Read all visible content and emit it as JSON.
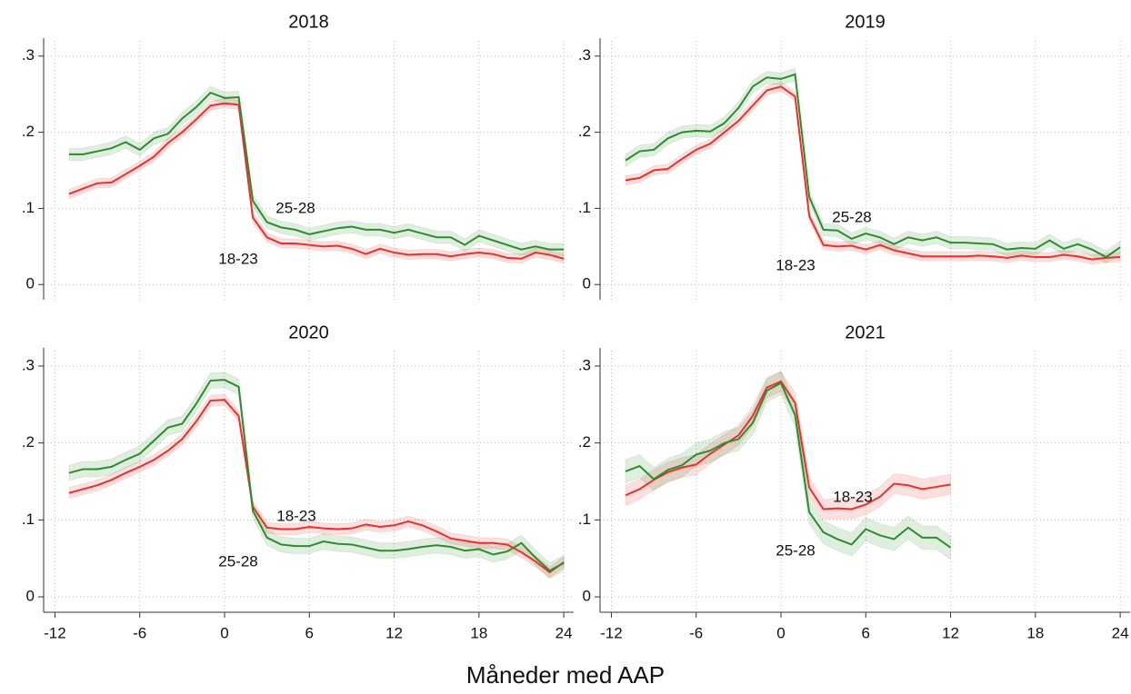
{
  "chart_data": [
    {
      "type": "line",
      "title": "2018",
      "x": [
        -11,
        -10,
        -9,
        -8,
        -7,
        -6,
        -5,
        -4,
        -3,
        -2,
        -1,
        0,
        1,
        2,
        3,
        4,
        5,
        6,
        7,
        8,
        9,
        10,
        11,
        12,
        13,
        14,
        15,
        16,
        17,
        18,
        19,
        20,
        21,
        22,
        23,
        24
      ],
      "series": [
        {
          "name": "18-23",
          "color": "#e8312b",
          "ci": 0.006,
          "values": [
            0.119,
            0.126,
            0.133,
            0.134,
            0.145,
            0.156,
            0.168,
            0.186,
            0.2,
            0.217,
            0.235,
            0.238,
            0.236,
            0.088,
            0.062,
            0.054,
            0.054,
            0.052,
            0.05,
            0.051,
            0.047,
            0.04,
            0.047,
            0.042,
            0.039,
            0.04,
            0.04,
            0.037,
            0.04,
            0.042,
            0.04,
            0.035,
            0.034,
            0.042,
            0.039,
            0.034
          ]
        },
        {
          "name": "25-28",
          "color": "#2e8b2e",
          "ci": 0.008,
          "values": [
            0.171,
            0.171,
            0.175,
            0.179,
            0.187,
            0.177,
            0.192,
            0.198,
            0.218,
            0.233,
            0.252,
            0.245,
            0.246,
            0.11,
            0.082,
            0.075,
            0.072,
            0.066,
            0.07,
            0.074,
            0.076,
            0.072,
            0.072,
            0.068,
            0.072,
            0.067,
            0.062,
            0.062,
            0.052,
            0.064,
            0.058,
            0.052,
            0.046,
            0.05,
            0.046,
            0.046
          ]
        }
      ],
      "xlim": [
        -12.8,
        24.7
      ],
      "ylim": [
        -0.02,
        0.32
      ],
      "xticks": [
        -12,
        -6,
        0,
        6,
        12,
        18,
        24
      ],
      "yticks": [
        0,
        {
          "value": 0.1,
          "label": ".1"
        },
        {
          "value": 0.2,
          "label": ".2"
        },
        {
          "value": 0.3,
          "label": ".3"
        }
      ],
      "grid": true
    },
    {
      "type": "line",
      "title": "2019",
      "x": [
        -11,
        -10,
        -9,
        -8,
        -7,
        -6,
        -5,
        -4,
        -3,
        -2,
        -1,
        0,
        1,
        2,
        3,
        4,
        5,
        6,
        7,
        8,
        9,
        10,
        11,
        12,
        13,
        14,
        15,
        16,
        17,
        18,
        19,
        20,
        21,
        22,
        23,
        24
      ],
      "series": [
        {
          "name": "18-23",
          "color": "#e8312b",
          "ci": 0.006,
          "values": [
            0.137,
            0.14,
            0.15,
            0.152,
            0.165,
            0.177,
            0.185,
            0.2,
            0.215,
            0.235,
            0.255,
            0.26,
            0.247,
            0.09,
            0.052,
            0.05,
            0.051,
            0.046,
            0.052,
            0.045,
            0.041,
            0.037,
            0.037,
            0.037,
            0.037,
            0.038,
            0.037,
            0.035,
            0.038,
            0.036,
            0.036,
            0.039,
            0.037,
            0.033,
            0.035,
            0.036
          ]
        },
        {
          "name": "25-28",
          "color": "#2e8b2e",
          "ci": 0.008,
          "values": [
            0.163,
            0.175,
            0.177,
            0.192,
            0.2,
            0.202,
            0.201,
            0.212,
            0.232,
            0.26,
            0.272,
            0.27,
            0.276,
            0.115,
            0.072,
            0.071,
            0.06,
            0.067,
            0.062,
            0.053,
            0.062,
            0.058,
            0.062,
            0.055,
            0.055,
            0.054,
            0.053,
            0.046,
            0.048,
            0.047,
            0.058,
            0.047,
            0.053,
            0.046,
            0.036,
            0.049
          ]
        }
      ],
      "xlim": [
        -12.8,
        24.7
      ],
      "ylim": [
        -0.02,
        0.32
      ],
      "xticks": [
        -12,
        -6,
        0,
        6,
        12,
        18,
        24
      ],
      "yticks": [
        0,
        {
          "value": 0.1,
          "label": ".1"
        },
        {
          "value": 0.2,
          "label": ".2"
        },
        {
          "value": 0.3,
          "label": ".3"
        }
      ],
      "grid": true
    },
    {
      "type": "line",
      "title": "2020",
      "x": [
        -11,
        -10,
        -9,
        -8,
        -7,
        -6,
        -5,
        -4,
        -3,
        -2,
        -1,
        0,
        1,
        2,
        3,
        4,
        5,
        6,
        7,
        8,
        9,
        10,
        11,
        12,
        13,
        14,
        15,
        16,
        17,
        18,
        19,
        20,
        21,
        22,
        23,
        24
      ],
      "series": [
        {
          "name": "18-23",
          "color": "#e8312b",
          "ci": 0.007,
          "values": [
            0.135,
            0.14,
            0.145,
            0.152,
            0.161,
            0.169,
            0.178,
            0.19,
            0.205,
            0.228,
            0.255,
            0.256,
            0.235,
            0.117,
            0.09,
            0.088,
            0.088,
            0.091,
            0.089,
            0.088,
            0.089,
            0.094,
            0.091,
            0.093,
            0.098,
            0.093,
            0.085,
            0.076,
            0.073,
            0.07,
            0.07,
            0.068,
            0.058,
            0.046,
            0.032,
            0.045
          ]
        },
        {
          "name": "25-28",
          "color": "#2e8b2e",
          "ci": 0.01,
          "values": [
            0.161,
            0.166,
            0.166,
            0.169,
            0.178,
            0.186,
            0.203,
            0.22,
            0.225,
            0.251,
            0.281,
            0.282,
            0.273,
            0.112,
            0.077,
            0.068,
            0.066,
            0.066,
            0.072,
            0.069,
            0.068,
            0.064,
            0.06,
            0.06,
            0.062,
            0.065,
            0.067,
            0.065,
            0.06,
            0.062,
            0.055,
            0.059,
            0.07,
            0.051,
            0.034,
            0.044
          ]
        }
      ],
      "xlim": [
        -12.8,
        24.7
      ],
      "ylim": [
        -0.02,
        0.32
      ],
      "xticks": [
        -12,
        -6,
        0,
        6,
        12,
        18,
        24
      ],
      "yticks": [
        0,
        {
          "value": 0.1,
          "label": ".1"
        },
        {
          "value": 0.2,
          "label": ".2"
        },
        {
          "value": 0.3,
          "label": ".3"
        }
      ],
      "grid": true
    },
    {
      "type": "line",
      "title": "2021",
      "x": [
        -11,
        -10,
        -9,
        -8,
        -7,
        -6,
        -5,
        -4,
        -3,
        -2,
        -1,
        0,
        1,
        2,
        3,
        4,
        5,
        6,
        7,
        8,
        9,
        10,
        11,
        12
      ],
      "series": [
        {
          "name": "18-23",
          "color": "#e8312b",
          "ci": 0.013,
          "values": [
            0.132,
            0.14,
            0.152,
            0.162,
            0.168,
            0.172,
            0.186,
            0.198,
            0.21,
            0.235,
            0.272,
            0.28,
            0.252,
            0.142,
            0.114,
            0.115,
            0.114,
            0.12,
            0.13,
            0.147,
            0.145,
            0.14,
            0.143,
            0.146
          ]
        },
        {
          "name": "25-28",
          "color": "#2e8b2e",
          "ci": 0.015,
          "values": [
            0.163,
            0.17,
            0.153,
            0.165,
            0.171,
            0.185,
            0.19,
            0.2,
            0.205,
            0.226,
            0.268,
            0.278,
            0.236,
            0.11,
            0.084,
            0.075,
            0.068,
            0.088,
            0.08,
            0.075,
            0.09,
            0.077,
            0.077,
            0.064
          ]
        }
      ],
      "xlim": [
        -12.8,
        24.7
      ],
      "ylim": [
        -0.02,
        0.32
      ],
      "xticks": [
        -12,
        -6,
        0,
        6,
        12,
        18,
        24
      ],
      "yticks": [
        0,
        {
          "value": 0.1,
          "label": ".1"
        },
        {
          "value": 0.2,
          "label": ".2"
        },
        {
          "value": 0.3,
          "label": ".3"
        }
      ],
      "grid": true
    }
  ],
  "xlabel": "Måneder med AAP"
}
